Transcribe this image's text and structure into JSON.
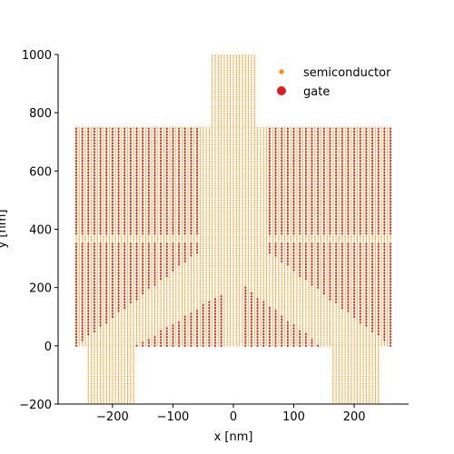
{
  "chart_data": {
    "type": "scatter",
    "xlabel": "x [nm]",
    "ylabel": "y [nm]",
    "xlim": [
      -290,
      290
    ],
    "ylim": [
      -200,
      1000
    ],
    "xticks": [
      -200,
      -100,
      0,
      100,
      200
    ],
    "yticks": [
      -200,
      0,
      200,
      400,
      600,
      800,
      1000
    ],
    "xtick_labels": [
      "−200",
      "−100",
      "0",
      "100",
      "200"
    ],
    "ytick_labels": [
      "−200",
      "0",
      "200",
      "400",
      "600",
      "800",
      "1000"
    ],
    "grid": false,
    "legend_position": "top-right",
    "series": [
      {
        "name": "semiconductor",
        "color": "#ff8c00",
        "regions": [
          {
            "shape": "rect",
            "x": [
              -260,
              260
            ],
            "y": [
              0,
              750
            ]
          },
          {
            "shape": "rect",
            "x": [
              -35,
              35
            ],
            "y": [
              750,
              1000
            ]
          },
          {
            "shape": "rect",
            "x": [
              -240,
              -165
            ],
            "y": [
              -200,
              0
            ]
          },
          {
            "shape": "rect",
            "x": [
              165,
              240
            ],
            "y": [
              -200,
              0
            ]
          }
        ]
      },
      {
        "name": "gate",
        "color": "#e31a1c",
        "regions": [
          {
            "shape": "rect",
            "x": [
              -260,
              -60
            ],
            "y": [
              385,
              750
            ]
          },
          {
            "shape": "rect",
            "x": [
              60,
              260
            ],
            "y": [
              385,
              750
            ]
          },
          {
            "shape": "wedge",
            "side": "left",
            "x": [
              -260,
              -60
            ],
            "y": [
              0,
              350
            ]
          },
          {
            "shape": "wedge",
            "side": "right",
            "x": [
              60,
              260
            ],
            "y": [
              0,
              350
            ]
          },
          {
            "shape": "triangle",
            "side": "left",
            "apex": [
              -15,
              185
            ],
            "base_y": 0,
            "base_x": [
              -160,
              -15
            ]
          },
          {
            "shape": "triangle",
            "side": "right",
            "apex": [
              20,
              200
            ],
            "base_y": 0,
            "base_x": [
              20,
              145
            ]
          }
        ]
      }
    ]
  }
}
